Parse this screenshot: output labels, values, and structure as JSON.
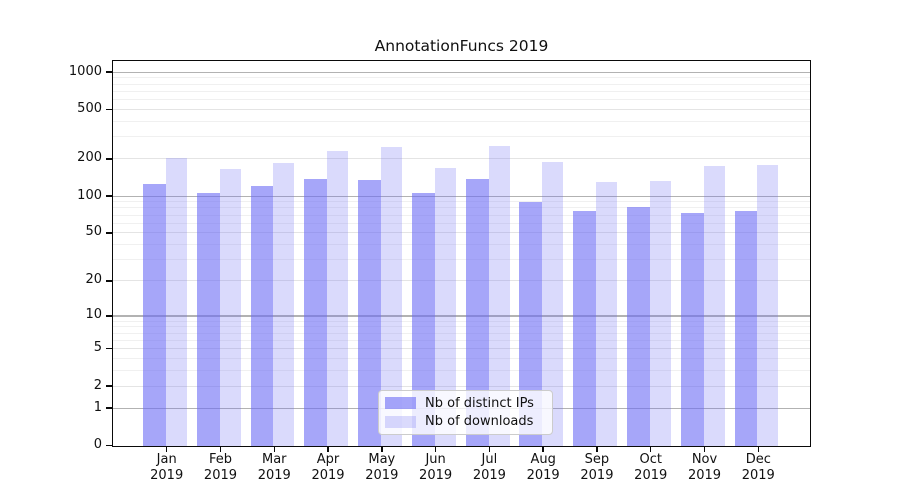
{
  "title": "AnnotationFuncs 2019",
  "legend": {
    "items": [
      {
        "label": "Nb of distinct IPs"
      },
      {
        "label": "Nb of downloads"
      }
    ]
  },
  "chart_data": {
    "type": "bar",
    "title": "AnnotationFuncs 2019",
    "categories": [
      "Jan",
      "Feb",
      "Mar",
      "Apr",
      "May",
      "Jun",
      "Jul",
      "Aug",
      "Sep",
      "Oct",
      "Nov",
      "Dec"
    ],
    "year_label": "2019",
    "series": [
      {
        "name": "Nb of distinct IPs",
        "color": "rgba(107,107,245,0.6)",
        "values": [
          127,
          106,
          122,
          139,
          135,
          107,
          140,
          91,
          77,
          83,
          73,
          76
        ]
      },
      {
        "name": "Nb of downloads",
        "color": "rgba(107,107,245,0.25)",
        "values": [
          204,
          166,
          186,
          232,
          252,
          170,
          258,
          189,
          132,
          133,
          176,
          181
        ]
      }
    ],
    "xlabel": "",
    "ylabel": "",
    "yscale": "log1p",
    "ylim": [
      0,
      1200
    ],
    "yticks": [
      0,
      1,
      2,
      5,
      10,
      20,
      50,
      100,
      200,
      500,
      1000
    ],
    "decade_gridlines": [
      1,
      10,
      100,
      1000
    ],
    "minor_gridlines": [
      3,
      4,
      6,
      7,
      8,
      9,
      30,
      40,
      60,
      70,
      80,
      90,
      300,
      400,
      600,
      700,
      800,
      900
    ],
    "grid": true,
    "legend_position": "lower center",
    "colors": {
      "bar_base": "#6b6bf5",
      "grid_decade": "#b2b2b2",
      "grid_labeled": "#e4e4e4",
      "grid_minor": "#f0f0f0",
      "axis": "#0a0a0a",
      "text": "#111111"
    }
  }
}
